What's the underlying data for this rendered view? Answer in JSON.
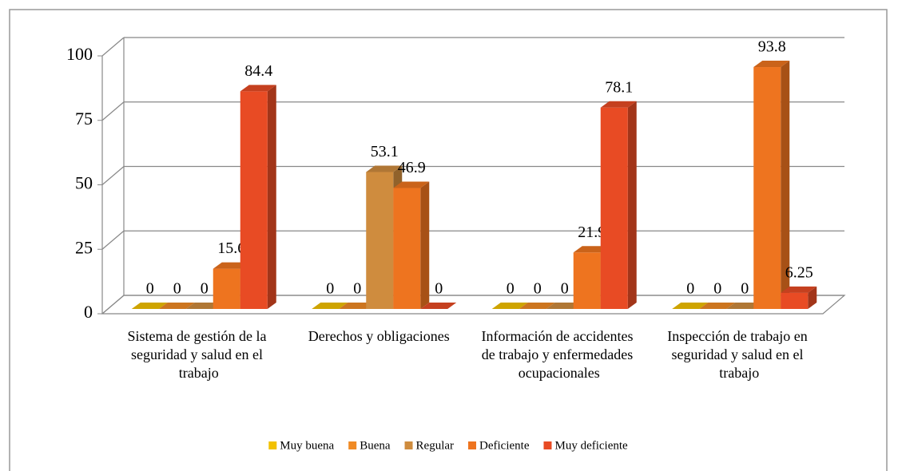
{
  "chart_data": {
    "type": "bar3d",
    "categories": [
      "Sistema de gestión de la seguridad y salud en el trabajo",
      "Derechos y obligaciones",
      "Información de accidentes de trabajo y enfermedades ocupacionales",
      "Inspección de trabajo en seguridad y salud en el trabajo"
    ],
    "series": [
      {
        "name": "Muy buena",
        "color": "#f2c100",
        "values": [
          0,
          0,
          0,
          0
        ]
      },
      {
        "name": "Buena",
        "color": "#f08a24",
        "values": [
          0,
          0,
          0,
          0
        ]
      },
      {
        "name": "Regular",
        "color": "#cf8c3e",
        "values": [
          0,
          53.1,
          0,
          0
        ]
      },
      {
        "name": "Deficiente",
        "color": "#ee741f",
        "values": [
          15.6,
          46.9,
          21.9,
          93.8
        ]
      },
      {
        "name": "Muy deficiente",
        "color": "#e84b24",
        "values": [
          84.4,
          0,
          78.1,
          6.25
        ]
      }
    ],
    "ylim": [
      0,
      100
    ],
    "yticks": [
      0,
      25,
      50,
      75,
      100
    ],
    "grid": true,
    "legend": "bottom"
  }
}
